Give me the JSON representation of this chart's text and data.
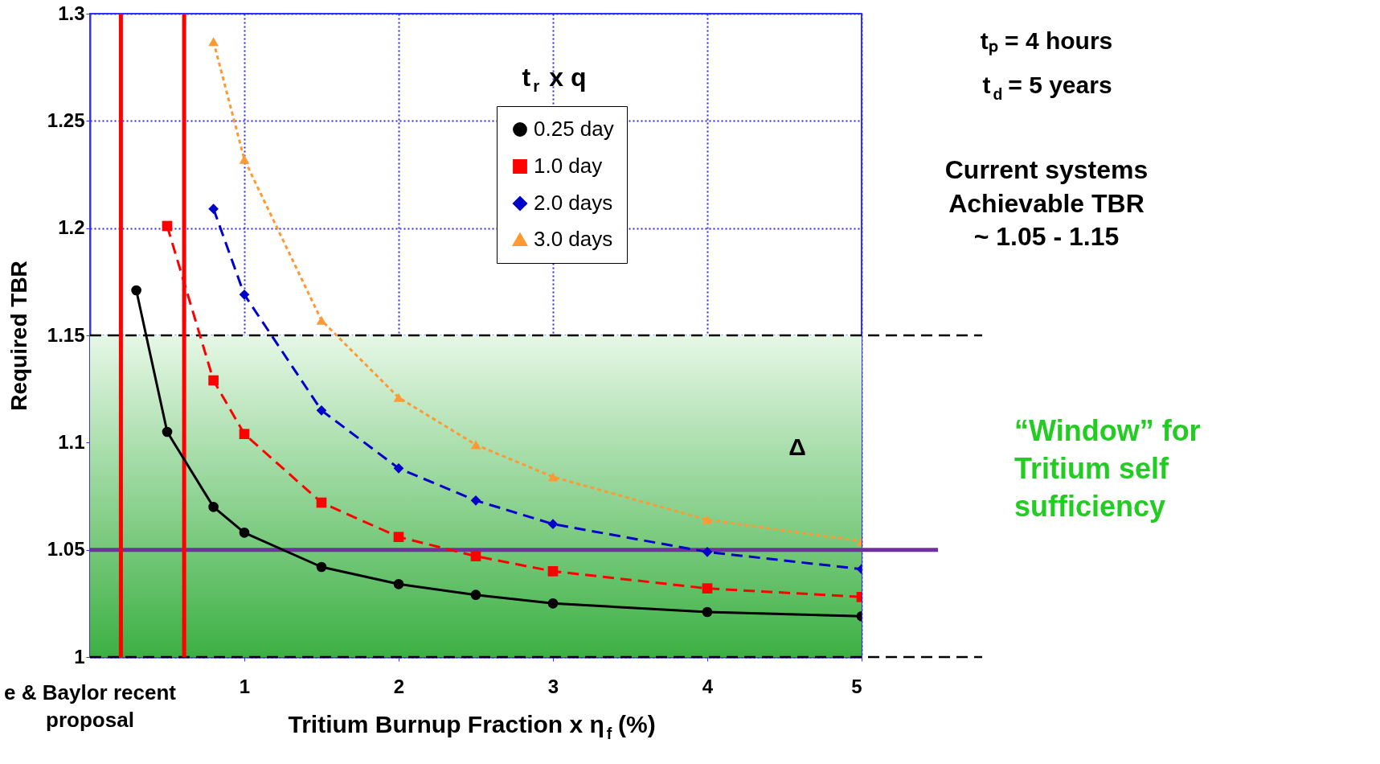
{
  "chart_data": {
    "type": "line",
    "xlabel": "Tritium Burnup Fraction x η$_{f}$ (%)",
    "ylabel": "Required TBR",
    "legend_title": "t$_{r}$ x q",
    "xlim": [
      0,
      5
    ],
    "xticks": [
      1,
      2,
      3,
      4,
      5
    ],
    "ylim": [
      1,
      1.3
    ],
    "yticks": [
      1,
      1.05,
      1.1,
      1.15,
      1.2,
      1.25,
      1.3
    ],
    "grid": true,
    "legend": "top right",
    "series": [
      {
        "name": "0.25 day",
        "color": "#000000",
        "marker": "circle",
        "line_style": "solid",
        "x": [
          0.3,
          0.5,
          0.8,
          1,
          1.5,
          2,
          2.5,
          3,
          4,
          5
        ],
        "values": [
          1.171,
          1.105,
          1.07,
          1.058,
          1.042,
          1.034,
          1.029,
          1.025,
          1.021,
          1.019
        ]
      },
      {
        "name": "1.0 day",
        "color": "#ff0000",
        "marker": "square",
        "line_style": "dashed",
        "x": [
          0.5,
          0.8,
          1,
          1.5,
          2,
          2.5,
          3,
          4,
          5
        ],
        "values": [
          1.201,
          1.129,
          1.104,
          1.072,
          1.056,
          1.047,
          1.04,
          1.032,
          1.028
        ]
      },
      {
        "name": "2.0 days",
        "color": "#0000cc",
        "marker": "diamond",
        "line_style": "dashed",
        "x": [
          0.8,
          1,
          1.5,
          2,
          2.5,
          3,
          4,
          5
        ],
        "values": [
          1.209,
          1.169,
          1.115,
          1.088,
          1.073,
          1.062,
          1.049,
          1.041
        ]
      },
      {
        "name": "3.0 days",
        "color": "#ff9933",
        "marker": "triangle",
        "line_style": "dotted",
        "x": [
          0.8,
          1,
          1.5,
          2,
          2.5,
          3,
          4,
          5
        ],
        "values": [
          1.287,
          1.232,
          1.157,
          1.121,
          1.099,
          1.084,
          1.064,
          1.054
        ]
      }
    ],
    "bands": [
      {
        "axis": "y",
        "from": 1,
        "to": 1.15,
        "color": "#3cb043"
      }
    ],
    "ref_lines": [
      {
        "axis": "y",
        "value": 1.05,
        "color": "#7030a0",
        "line_style": "solid"
      },
      {
        "axis": "y",
        "value": 1.15,
        "color": "#000000",
        "line_style": "dashed"
      },
      {
        "axis": "y",
        "value": 1,
        "color": "#000000",
        "line_style": "dashed"
      },
      {
        "axis": "x",
        "value": 0.2,
        "color": "#ff0000",
        "line_style": "solid"
      },
      {
        "axis": "x",
        "value": 0.61,
        "color": "#ff0000",
        "line_style": "solid"
      }
    ],
    "annotations": [
      "tₚ = 4 hours",
      "t$_{d}$ = 5 years",
      "Current systems\nAchievable TBR\n~ 1.05 - 1.15",
      "“Window” for\nTritium self\nsufficiency",
      "Δ",
      "e & Baylor recent\nproposal"
    ]
  }
}
